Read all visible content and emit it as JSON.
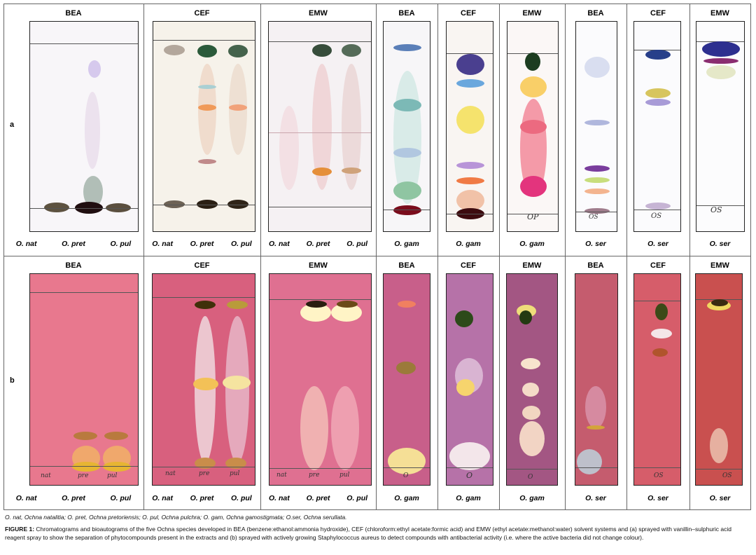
{
  "row_labels": [
    "a",
    "b"
  ],
  "panels": [
    {
      "header": "BEA",
      "labels": [
        "O. nat",
        "O. pret",
        "O. pul"
      ]
    },
    {
      "header": "CEF",
      "labels": [
        "O. nat",
        "O. pret",
        "O. pul"
      ]
    },
    {
      "header": "EMW",
      "labels": [
        "O. nat",
        "O. pret",
        "O. pul"
      ]
    },
    {
      "header": "BEA",
      "labels": [
        "O. gam"
      ]
    },
    {
      "header": "CEF",
      "labels": [
        "O. gam"
      ]
    },
    {
      "header": "EMW",
      "labels": [
        "O. gam"
      ]
    },
    {
      "header": "BEA",
      "labels": [
        "O. ser"
      ]
    },
    {
      "header": "CEF",
      "labels": [
        "O. ser"
      ]
    },
    {
      "header": "EMW",
      "labels": [
        "O. ser"
      ]
    }
  ],
  "plate_marks": {
    "nat": "nat",
    "pre": "pre",
    "pul": "pul",
    "op": "OP",
    "os": "OS",
    "o": "O"
  },
  "abbreviations": "O. nat, Ochna natalitia; O. pret, Ochna pretoriensis; O. pul, Ochna pulchra; O. gam, Ochna gamostigmata; O.ser, Ochna serullata.",
  "caption": {
    "label": "FIGURE 1:",
    "text": "Chromatograms and bioautograms of the five Ochna species developed in BEA (benzene:ethanol:ammonia hydroxide), CEF (chloroform:ethyl acetate:formic acid) and EMW (ethyl acetate:methanol:water) solvent systems and (a) sprayed with vanillin–sulphuric acid reagent spray to show the separation of phytocompounds present in the extracts and (b) sprayed with actively growing Staphylococcus aureus to detect compounds with antibacterial activity (i.e. where the active bacteria did not change colour)."
  }
}
